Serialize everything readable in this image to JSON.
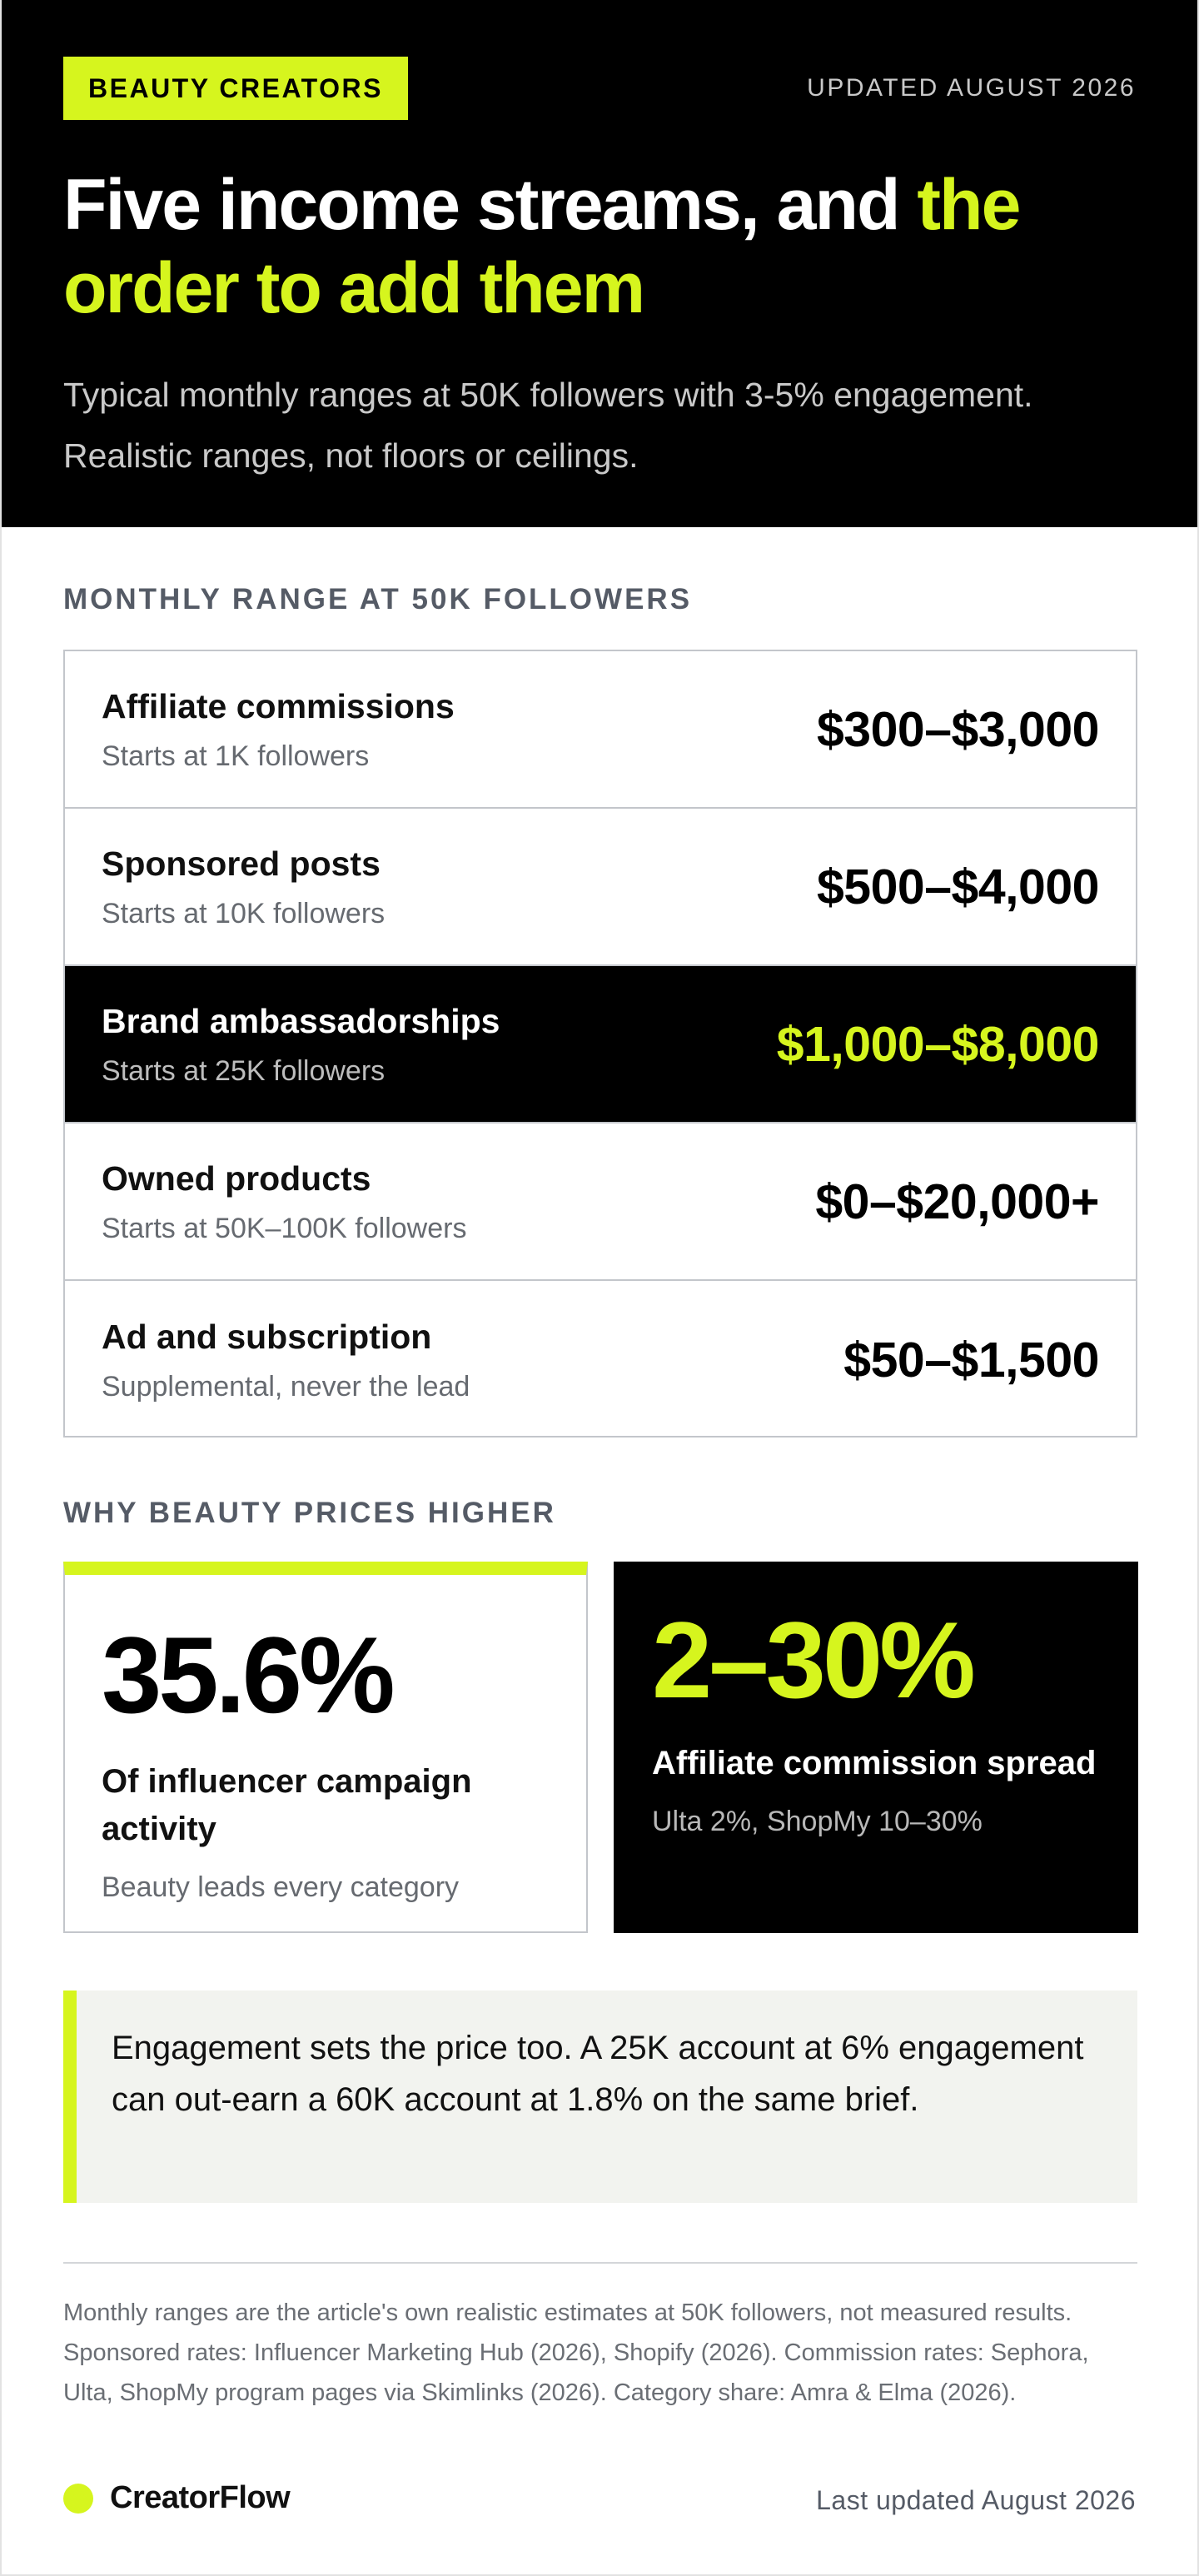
{
  "hero": {
    "badge": "BEAUTY CREATORS",
    "updated": "UPDATED AUGUST 2026",
    "title_white": "Five income streams, and ",
    "title_accent_1": "the",
    "title_accent_2": "order to add them",
    "subtitle": "Typical monthly ranges at 50K followers with 3-5% engagement. Realistic ranges, not floors or ceilings."
  },
  "table": {
    "label": "MONTHLY RANGE AT 50K FOLLOWERS",
    "rows": [
      {
        "name": "Affiliate commissions",
        "note": "Starts at 1K followers",
        "value": "$300–$3,000"
      },
      {
        "name": "Sponsored posts",
        "note": "Starts at 10K followers",
        "value": "$500–$4,000"
      },
      {
        "name": "Brand ambassadorships",
        "note": "Starts at 25K followers",
        "value": "$1,000–$8,000"
      },
      {
        "name": "Owned products",
        "note": "Starts at 50K–100K followers",
        "value": "$0–$20,000+"
      },
      {
        "name": "Ad and subscription",
        "note": "Supplemental, never the lead",
        "value": "$50–$1,500"
      }
    ]
  },
  "why": {
    "label": "WHY BEAUTY PRICES HIGHER",
    "cards": [
      {
        "big": "35.6%",
        "title": "Of influencer campaign activity",
        "note": "Beauty leads every category"
      },
      {
        "big": "2–30%",
        "title": "Affiliate commission spread",
        "note": "Ulta 2%, ShopMy 10–30%"
      }
    ]
  },
  "callout": {
    "text": "Engagement sets the price too. A 25K account at 6% engagement can out-earn a 60K account at 1.8% on the same brief."
  },
  "footer": {
    "sources": "Monthly ranges are the article's own realistic estimates at 50K followers, not measured results. Sponsored rates: Influencer Marketing Hub (2026), Shopify (2026). Commission rates: Sephora, Ulta, ShopMy program pages via Skimlinks (2026). Category share: Amra & Elma (2026).",
    "brand": "CreatorFlow",
    "last_updated": "Last updated August 2026"
  },
  "colors": {
    "accent": "#d6f51e",
    "dark": "#000000",
    "muted": "#555b66"
  }
}
